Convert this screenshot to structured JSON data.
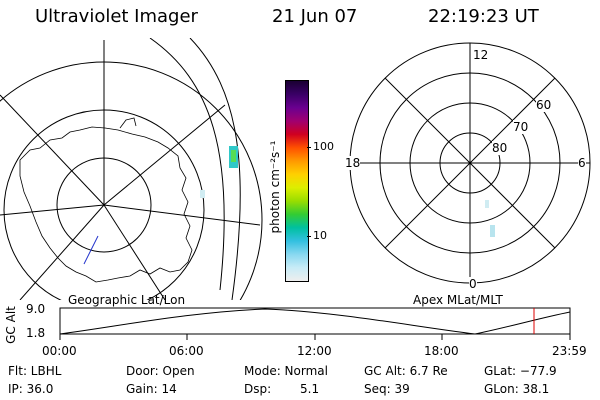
{
  "header": {
    "title": "Ultraviolet Imager",
    "date": "21 Jun 07",
    "time": "22:19:23 UT"
  },
  "colorbar": {
    "unit_label": "photon cm⁻²s⁻¹",
    "tick_100": "100",
    "tick_10": "10",
    "colors": [
      "#1a0033",
      "#3a0066",
      "#6a0090",
      "#a00070",
      "#d00020",
      "#ff5000",
      "#ff9900",
      "#ffd000",
      "#ddee00",
      "#99dd00",
      "#33cc33",
      "#00c0a0",
      "#33c0e0",
      "#88d8f0",
      "#c8ecf7",
      "#eeeeee"
    ]
  },
  "geo_map": {
    "label": "Geographic Lat/Lon"
  },
  "apex_map": {
    "label": "Apex MLat/MLT",
    "mlt_top": "12",
    "mlt_left": "18",
    "mlt_right": "6",
    "mlt_bottom": "0",
    "lat_60": "60",
    "lat_70": "70",
    "lat_80": "80"
  },
  "orbit_plot": {
    "ylabel": "GC Alt",
    "ytick_top": "9.0",
    "ytick_bottom": "1.8",
    "xticks": [
      "00:00",
      "06:00",
      "12:00",
      "18:00",
      "23:59"
    ],
    "marker_color": "#dd0000"
  },
  "info": {
    "filter": "Flt: LBHL",
    "ip": "IP: 36.0",
    "door": "Door: Open",
    "gain": "Gain: 14",
    "mode": "Mode: Normal",
    "dsp_label": "Dsp:",
    "dsp_value": "5.1",
    "gc_alt": "GC Alt: 6.7 Re",
    "seq": "Seq: 39",
    "glat": "GLat: −77.9",
    "glon": "GLon:  38.1"
  }
}
